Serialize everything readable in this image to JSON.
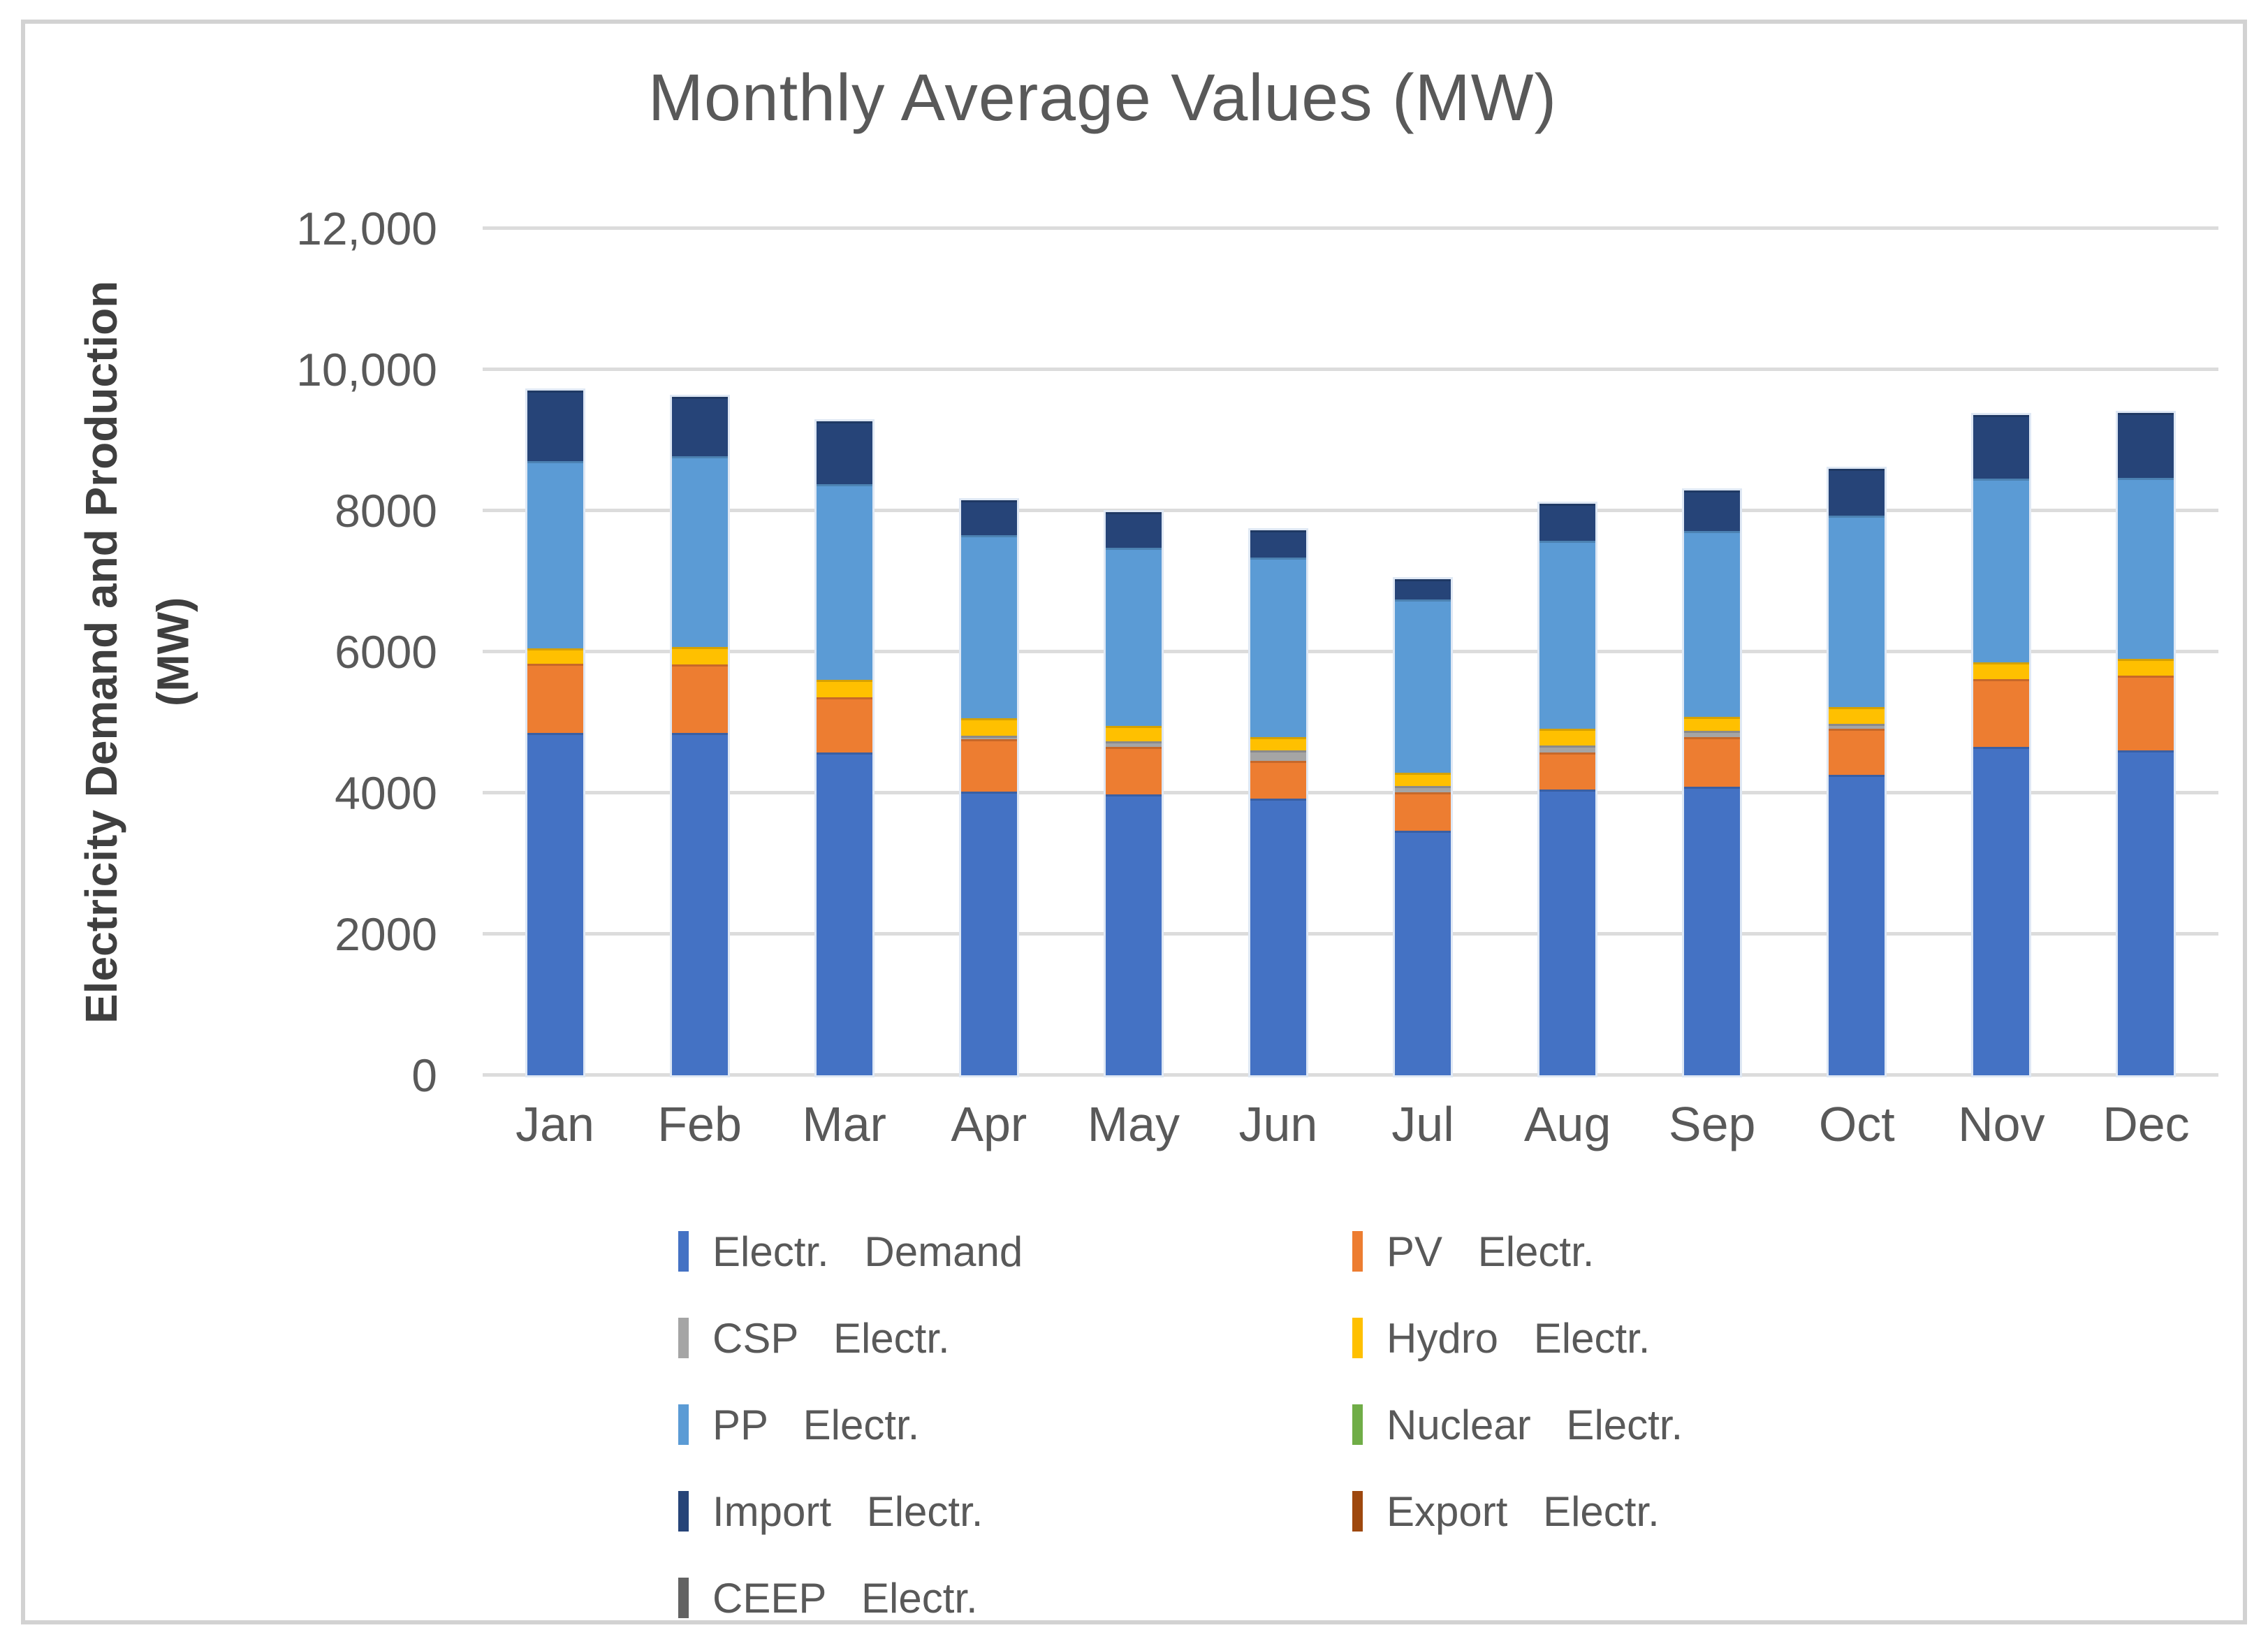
{
  "title": "Monthly Average Values (MW)",
  "y_axis": {
    "title_line1": "Electricity Demand and Production",
    "title_line2": "(MW)"
  },
  "chart_data": {
    "type": "bar",
    "subtype": "stacked-vertical",
    "title": "Monthly Average Values (MW)",
    "xlabel": "",
    "ylabel": "Electricity Demand and Production (MW)",
    "ylim": [
      0,
      12000
    ],
    "grid": "horizontal",
    "legend_position": "bottom-two-columns",
    "y_ticks": [
      {
        "value": 12000,
        "label": "12,000"
      },
      {
        "value": 10000,
        "label": "10,000"
      },
      {
        "value": 8000,
        "label": "8000"
      },
      {
        "value": 6000,
        "label": "6000"
      },
      {
        "value": 4000,
        "label": "4000"
      },
      {
        "value": 2000,
        "label": "2000"
      },
      {
        "value": 0,
        "label": "0"
      }
    ],
    "categories": [
      "Jan",
      "Feb",
      "Mar",
      "Apr",
      "May",
      "Jun",
      "Jul",
      "Aug",
      "Sep",
      "Oct",
      "Nov",
      "Dec"
    ],
    "series": [
      {
        "name": "Electr. Demand",
        "color": "#4472C4",
        "values": [
          4850,
          4850,
          4570,
          4020,
          3980,
          3920,
          3470,
          4050,
          4090,
          4260,
          4650,
          4600
        ]
      },
      {
        "name": "PV Electr.",
        "color": "#ED7D31",
        "values": [
          980,
          970,
          790,
          740,
          670,
          540,
          540,
          520,
          700,
          650,
          960,
          1060
        ]
      },
      {
        "name": "CSP Electr.",
        "color": "#A5A5A5",
        "values": [
          0,
          0,
          0,
          50,
          80,
          140,
          90,
          100,
          90,
          70,
          0,
          0
        ]
      },
      {
        "name": "Hydro Electr.",
        "color": "#FFC000",
        "values": [
          220,
          250,
          240,
          250,
          220,
          190,
          190,
          240,
          200,
          240,
          240,
          240
        ]
      },
      {
        "name": "PP Electr.",
        "color": "#5B9BD5",
        "values": [
          2650,
          2700,
          2780,
          2590,
          2530,
          2550,
          2450,
          2660,
          2630,
          2710,
          2610,
          2570
        ]
      },
      {
        "name": "Nuclear Electr.",
        "color": "#70AD47",
        "values": [
          0,
          0,
          0,
          0,
          0,
          0,
          0,
          0,
          0,
          0,
          0,
          0
        ]
      },
      {
        "name": "Import Electr.",
        "color": "#264478",
        "values": [
          1000,
          840,
          890,
          500,
          500,
          380,
          290,
          530,
          580,
          660,
          900,
          920
        ]
      },
      {
        "name": "Export Electr.",
        "color": "#9E480E",
        "values": [
          0,
          0,
          0,
          0,
          0,
          0,
          0,
          0,
          0,
          0,
          0,
          0
        ]
      },
      {
        "name": "CEEP Electr.",
        "color": "#636363",
        "values": [
          0,
          0,
          0,
          0,
          0,
          0,
          0,
          0,
          0,
          0,
          0,
          0
        ]
      }
    ],
    "monthly_totals": [
      9700,
      9610,
      9270,
      8150,
      7980,
      7720,
      7030,
      8100,
      8290,
      8590,
      9360,
      9390
    ],
    "colors": {
      "gridline": "#dcdcdc",
      "text": "#595959",
      "axis_title_text": "#3f3f3f",
      "frame_border": "#d2d2d2"
    }
  }
}
